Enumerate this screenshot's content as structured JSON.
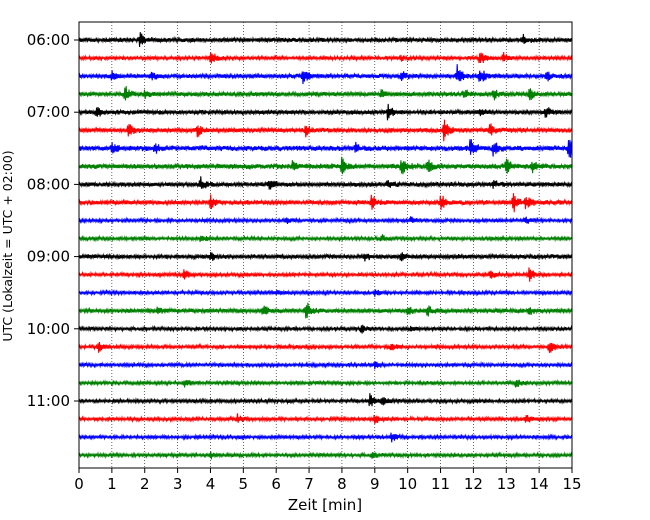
{
  "chart_data": {
    "type": "line",
    "title": "",
    "xlabel": "Zeit  [min]",
    "ylabel": "UTC (Lokalzeit = UTC + 02:00)",
    "xlim": [
      0,
      15
    ],
    "x_ticks": [
      0,
      1,
      2,
      3,
      4,
      5,
      6,
      7,
      8,
      9,
      10,
      11,
      12,
      13,
      14,
      15
    ],
    "y_tick_labels": [
      "06:00",
      "07:00",
      "08:00",
      "09:00",
      "10:00",
      "11:00"
    ],
    "grid": "vertical-dotted",
    "traces_per_hour": 4,
    "trace_minutes": 15,
    "trace_colors": [
      "#000000",
      "#ff0000",
      "#0000ff",
      "#008000"
    ],
    "traces": [
      {
        "start": "06:00",
        "amplitude": 2.5,
        "events": [
          {
            "t": 1.85,
            "a": 7
          },
          {
            "t": 13.5,
            "a": 5
          }
        ]
      },
      {
        "start": "06:15",
        "amplitude": 2,
        "events": [
          {
            "t": 4.0,
            "a": 8
          },
          {
            "t": 9.8,
            "a": 3
          },
          {
            "t": 12.2,
            "a": 8
          },
          {
            "t": 12.9,
            "a": 5
          }
        ]
      },
      {
        "start": "06:30",
        "amplitude": 2.5,
        "events": [
          {
            "t": 1.0,
            "a": 4
          },
          {
            "t": 2.2,
            "a": 4
          },
          {
            "t": 6.8,
            "a": 9
          },
          {
            "t": 9.8,
            "a": 5
          },
          {
            "t": 11.5,
            "a": 11
          },
          {
            "t": 12.2,
            "a": 9
          },
          {
            "t": 14.2,
            "a": 6
          }
        ]
      },
      {
        "start": "06:45",
        "amplitude": 2.5,
        "events": [
          {
            "t": 1.4,
            "a": 9
          },
          {
            "t": 2.0,
            "a": 4
          },
          {
            "t": 9.2,
            "a": 4
          },
          {
            "t": 11.7,
            "a": 6
          },
          {
            "t": 12.6,
            "a": 6
          },
          {
            "t": 13.7,
            "a": 7
          }
        ]
      },
      {
        "start": "07:00",
        "amplitude": 2.5,
        "events": [
          {
            "t": 0.55,
            "a": 7
          },
          {
            "t": 9.4,
            "a": 9
          },
          {
            "t": 12.2,
            "a": 5
          },
          {
            "t": 14.2,
            "a": 6
          }
        ]
      },
      {
        "start": "07:15",
        "amplitude": 2.5,
        "events": [
          {
            "t": 1.5,
            "a": 9
          },
          {
            "t": 3.6,
            "a": 7
          },
          {
            "t": 6.9,
            "a": 5
          },
          {
            "t": 11.1,
            "a": 11
          },
          {
            "t": 12.5,
            "a": 7
          }
        ]
      },
      {
        "start": "07:30",
        "amplitude": 3,
        "events": [
          {
            "t": 1.0,
            "a": 6
          },
          {
            "t": 2.3,
            "a": 5
          },
          {
            "t": 8.4,
            "a": 5
          },
          {
            "t": 11.9,
            "a": 11
          },
          {
            "t": 12.6,
            "a": 9
          },
          {
            "t": 14.9,
            "a": 12
          }
        ]
      },
      {
        "start": "07:45",
        "amplitude": 3,
        "events": [
          {
            "t": 6.5,
            "a": 5
          },
          {
            "t": 8.0,
            "a": 9
          },
          {
            "t": 9.8,
            "a": 10
          },
          {
            "t": 10.6,
            "a": 7
          },
          {
            "t": 13.0,
            "a": 9
          },
          {
            "t": 13.8,
            "a": 6
          }
        ]
      },
      {
        "start": "08:00",
        "amplitude": 2.5,
        "events": [
          {
            "t": 3.7,
            "a": 7
          },
          {
            "t": 5.8,
            "a": 5
          },
          {
            "t": 9.4,
            "a": 5
          },
          {
            "t": 12.6,
            "a": 4
          }
        ]
      },
      {
        "start": "08:15",
        "amplitude": 2.5,
        "events": [
          {
            "t": 4.0,
            "a": 6
          },
          {
            "t": 8.9,
            "a": 8
          },
          {
            "t": 11.0,
            "a": 9
          },
          {
            "t": 13.2,
            "a": 11
          },
          {
            "t": 13.6,
            "a": 7
          }
        ]
      },
      {
        "start": "08:30",
        "amplitude": 2,
        "events": [
          {
            "t": 6.3,
            "a": 3
          },
          {
            "t": 10.1,
            "a": 3
          },
          {
            "t": 13.6,
            "a": 3
          }
        ]
      },
      {
        "start": "08:45",
        "amplitude": 2,
        "events": [
          {
            "t": 3.7,
            "a": 5
          },
          {
            "t": 9.2,
            "a": 4
          }
        ]
      },
      {
        "start": "09:00",
        "amplitude": 2.5,
        "events": [
          {
            "t": 4.0,
            "a": 4
          },
          {
            "t": 8.7,
            "a": 4
          },
          {
            "t": 9.8,
            "a": 4
          }
        ]
      },
      {
        "start": "09:15",
        "amplitude": 2,
        "events": [
          {
            "t": 3.2,
            "a": 5
          },
          {
            "t": 12.5,
            "a": 4
          },
          {
            "t": 13.7,
            "a": 7
          }
        ]
      },
      {
        "start": "09:30",
        "amplitude": 2,
        "events": [
          {
            "t": 6.0,
            "a": 3
          },
          {
            "t": 9.0,
            "a": 4
          }
        ]
      },
      {
        "start": "09:45",
        "amplitude": 2.5,
        "events": [
          {
            "t": 2.4,
            "a": 4
          },
          {
            "t": 5.6,
            "a": 6
          },
          {
            "t": 6.9,
            "a": 10
          },
          {
            "t": 10.0,
            "a": 5
          },
          {
            "t": 10.6,
            "a": 5
          },
          {
            "t": 13.7,
            "a": 4
          }
        ]
      },
      {
        "start": "10:00",
        "amplitude": 2,
        "events": [
          {
            "t": 8.6,
            "a": 5
          },
          {
            "t": 10.1,
            "a": 3
          }
        ]
      },
      {
        "start": "10:15",
        "amplitude": 2,
        "events": [
          {
            "t": 0.6,
            "a": 5
          },
          {
            "t": 9.5,
            "a": 5
          },
          {
            "t": 14.3,
            "a": 7
          }
        ]
      },
      {
        "start": "10:30",
        "amplitude": 2,
        "events": [
          {
            "t": 9.0,
            "a": 3
          }
        ]
      },
      {
        "start": "10:45",
        "amplitude": 2,
        "events": [
          {
            "t": 3.2,
            "a": 4
          },
          {
            "t": 13.3,
            "a": 5
          }
        ]
      },
      {
        "start": "11:00",
        "amplitude": 2,
        "events": [
          {
            "t": 8.85,
            "a": 7
          },
          {
            "t": 9.2,
            "a": 5
          }
        ]
      },
      {
        "start": "11:15",
        "amplitude": 2,
        "events": [
          {
            "t": 4.8,
            "a": 5
          },
          {
            "t": 9.0,
            "a": 6
          },
          {
            "t": 13.6,
            "a": 5
          }
        ]
      },
      {
        "start": "11:30",
        "amplitude": 2,
        "events": [
          {
            "t": 9.5,
            "a": 5
          }
        ]
      },
      {
        "start": "11:45",
        "amplitude": 2,
        "events": [
          {
            "t": 4.0,
            "a": 3
          },
          {
            "t": 8.9,
            "a": 3
          }
        ]
      }
    ]
  }
}
